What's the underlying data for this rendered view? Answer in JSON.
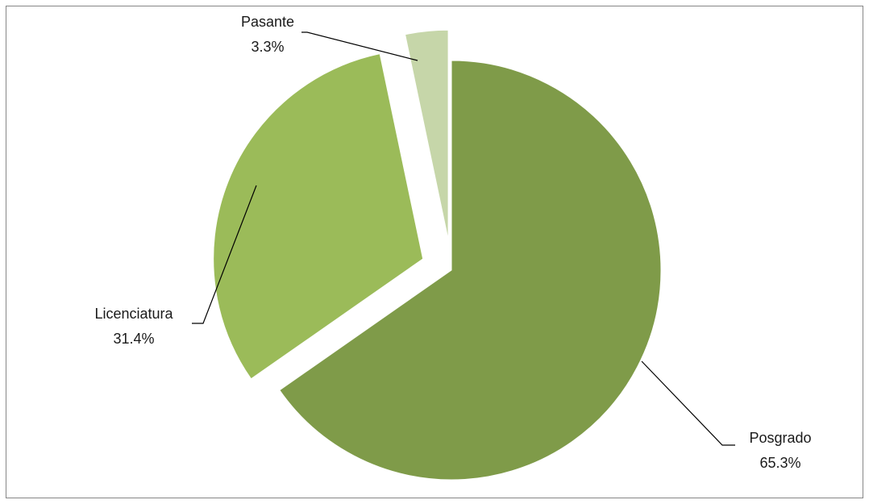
{
  "chart_data": {
    "type": "pie",
    "title": "",
    "slices": [
      {
        "label": "Posgrado",
        "percent_label": "65.3%",
        "value": 65.3,
        "color": "#7f9b49",
        "exploded": false
      },
      {
        "label": "Licenciatura",
        "percent_label": "31.4%",
        "value": 31.4,
        "color": "#9bbb59",
        "exploded": true
      },
      {
        "label": "Pasante",
        "percent_label": "3.3%",
        "value": 3.3,
        "color": "#c6d6a9",
        "exploded": true
      }
    ],
    "start_angle": "12 o'clock",
    "direction": "clockwise",
    "legend": "none",
    "data_labels": "outside with leader lines"
  }
}
